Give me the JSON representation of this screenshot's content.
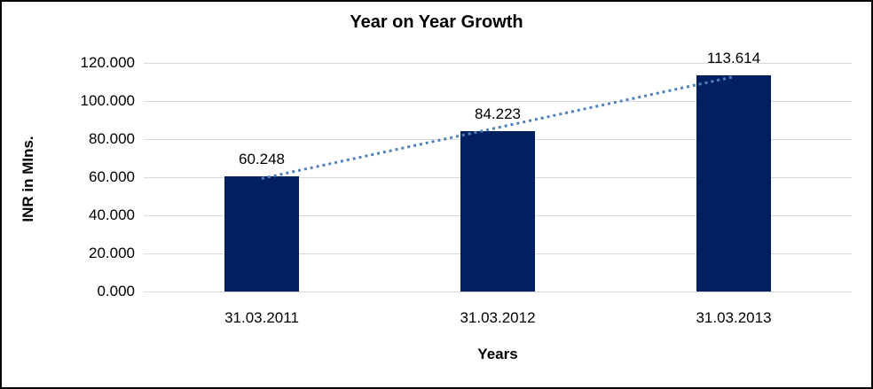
{
  "window": {
    "background_color": "#ffffff",
    "border_color": "#000000"
  },
  "chart_data": {
    "type": "bar",
    "title": "Year on Year Growth",
    "xlabel": "Years",
    "ylabel": "INR in MIns.",
    "categories": [
      "31.03.2011",
      "31.03.2012",
      "31.03.2013"
    ],
    "values": [
      60.248,
      84.223,
      113.614
    ],
    "value_labels": [
      "60.248",
      "84.223",
      "113.614"
    ],
    "ylim": [
      0,
      120
    ],
    "ytick_step": 20,
    "ytick_labels": [
      "0.000",
      "20.000",
      "40.000",
      "60.000",
      "80.000",
      "100.000",
      "120.000"
    ],
    "grid": true,
    "legend": "none",
    "bar_color": "#002060",
    "gridline_color": "#d9d9d9",
    "text_color": "#000000",
    "trendline": {
      "type": "linear",
      "style": "dotted",
      "color": "#4f81bd"
    }
  }
}
